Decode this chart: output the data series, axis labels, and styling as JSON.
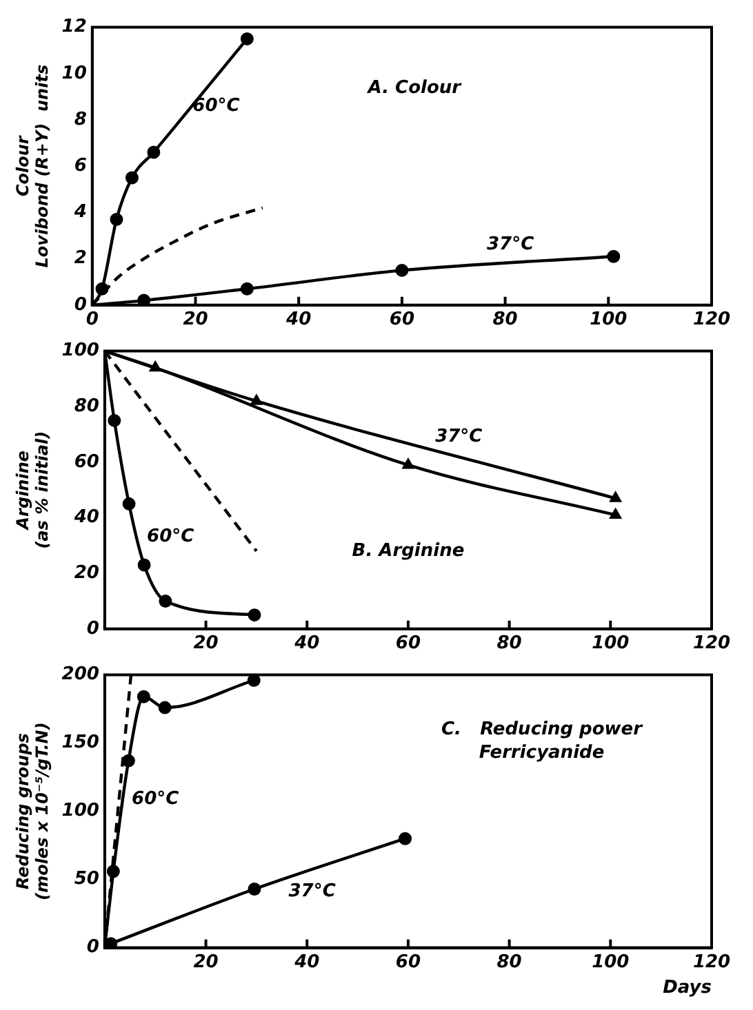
{
  "chart_data": [
    {
      "type": "line",
      "title": "A. Colour",
      "ylabel": "Colour\nLovibond (R+Y)  units",
      "xlim": [
        0,
        120
      ],
      "xticks": [
        0,
        20,
        40,
        60,
        80,
        100,
        120
      ],
      "ylim": [
        0,
        12
      ],
      "yticks": [
        0,
        2,
        4,
        6,
        8,
        10,
        12
      ],
      "grid": false,
      "legend": false,
      "series": [
        {
          "name": "60°C",
          "color": "#000000",
          "marker": "circle",
          "x": [
            0,
            1.9,
            4.7,
            7.7,
            11.9,
            30
          ],
          "values": [
            0,
            0.7,
            3.7,
            5.5,
            6.6,
            11.5
          ]
        },
        {
          "color": "#000000",
          "marker": "none",
          "line_style": "dashed",
          "x": [
            0,
            5,
            10,
            16,
            23,
            33
          ],
          "values": [
            0,
            1.2,
            2,
            2.75,
            3.5,
            4.2
          ]
        },
        {
          "name": "37°C",
          "color": "#000000",
          "marker": "circle",
          "x": [
            0,
            10,
            30,
            60,
            101
          ],
          "values": [
            0,
            0.2,
            0.7,
            1.5,
            2.1
          ]
        }
      ]
    },
    {
      "type": "line",
      "title": "B. Arginine",
      "ylabel": "Arginine\n(as % initial)",
      "xlim": [
        0,
        120
      ],
      "xticks": [
        {
          "value": 0,
          "label": null
        },
        20,
        40,
        60,
        80,
        100,
        120
      ],
      "ylim": [
        0,
        100
      ],
      "yticks": [
        0,
        20,
        40,
        60,
        80,
        100
      ],
      "grid": false,
      "legend": false,
      "series": [
        {
          "name": "60°C",
          "color": "#000000",
          "marker": "circle",
          "x": [
            0,
            1.9,
            4.8,
            7.8,
            12,
            29.6
          ],
          "values": [
            100,
            75,
            45,
            23,
            10,
            5
          ]
        },
        {
          "color": "#000000",
          "marker": "none",
          "line_style": "dashed",
          "x": [
            0,
            30
          ],
          "values": [
            100,
            28
          ]
        },
        {
          "name": "37°C",
          "color": "#000000",
          "marker": "triangle",
          "x": [
            0,
            30,
            101
          ],
          "values": [
            100,
            82,
            47
          ]
        },
        {
          "color": "#000000",
          "marker": "triangle",
          "x": [
            0,
            10,
            60,
            101
          ],
          "values": [
            100,
            94,
            59,
            41
          ]
        }
      ]
    },
    {
      "type": "line",
      "title": "C.   Reducing power\nFerricyanide",
      "xlabel": "Days",
      "ylabel": "Reducing groups\n(moles x 10⁻⁵/gT.N)",
      "xlim": [
        0,
        120
      ],
      "xticks": [
        {
          "value": 0,
          "label": null
        },
        20,
        40,
        60,
        80,
        100,
        120
      ],
      "ylim": [
        0,
        200
      ],
      "yticks": [
        0,
        50,
        100,
        150,
        200
      ],
      "grid": false,
      "legend": false,
      "series": [
        {
          "name": "60°C",
          "color": "#000000",
          "marker": "circle",
          "x": [
            0,
            1.7,
            4.7,
            7.7,
            11.9,
            29.5
          ],
          "values": [
            1,
            56,
            137,
            184,
            176,
            196
          ]
        },
        {
          "color": "#000000",
          "marker": "none",
          "line_style": "dashed",
          "x": [
            0,
            5.2
          ],
          "values": [
            0,
            200
          ]
        },
        {
          "name": "37°C",
          "color": "#000000",
          "marker": "circle",
          "x": [
            1.2,
            29.6,
            59.4
          ],
          "values": [
            3,
            43,
            80
          ]
        }
      ]
    }
  ]
}
